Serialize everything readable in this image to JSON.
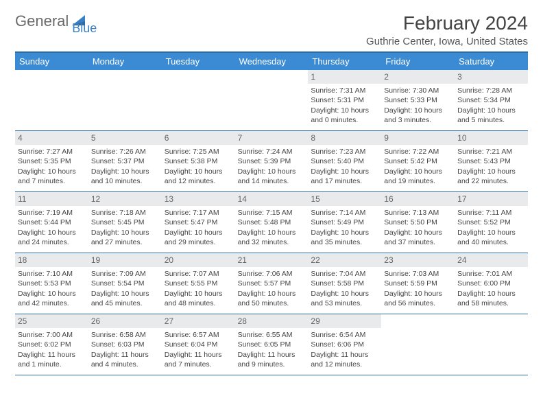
{
  "logo": {
    "text1": "General",
    "text2": "Blue"
  },
  "title": "February 2024",
  "location": "Guthrie Center, Iowa, United States",
  "colors": {
    "header_bg": "#3b8bd4",
    "border": "#2d6ca2",
    "daynum_bg": "#e9eaec",
    "text": "#444444",
    "logo_gray": "#6a6a6a",
    "logo_blue": "#3b7fc4"
  },
  "day_names": [
    "Sunday",
    "Monday",
    "Tuesday",
    "Wednesday",
    "Thursday",
    "Friday",
    "Saturday"
  ],
  "weeks": [
    [
      {
        "empty": true
      },
      {
        "empty": true
      },
      {
        "empty": true
      },
      {
        "empty": true
      },
      {
        "num": "1",
        "sunrise": "Sunrise: 7:31 AM",
        "sunset": "Sunset: 5:31 PM",
        "daylight": "Daylight: 10 hours and 0 minutes."
      },
      {
        "num": "2",
        "sunrise": "Sunrise: 7:30 AM",
        "sunset": "Sunset: 5:33 PM",
        "daylight": "Daylight: 10 hours and 3 minutes."
      },
      {
        "num": "3",
        "sunrise": "Sunrise: 7:28 AM",
        "sunset": "Sunset: 5:34 PM",
        "daylight": "Daylight: 10 hours and 5 minutes."
      }
    ],
    [
      {
        "num": "4",
        "sunrise": "Sunrise: 7:27 AM",
        "sunset": "Sunset: 5:35 PM",
        "daylight": "Daylight: 10 hours and 7 minutes."
      },
      {
        "num": "5",
        "sunrise": "Sunrise: 7:26 AM",
        "sunset": "Sunset: 5:37 PM",
        "daylight": "Daylight: 10 hours and 10 minutes."
      },
      {
        "num": "6",
        "sunrise": "Sunrise: 7:25 AM",
        "sunset": "Sunset: 5:38 PM",
        "daylight": "Daylight: 10 hours and 12 minutes."
      },
      {
        "num": "7",
        "sunrise": "Sunrise: 7:24 AM",
        "sunset": "Sunset: 5:39 PM",
        "daylight": "Daylight: 10 hours and 14 minutes."
      },
      {
        "num": "8",
        "sunrise": "Sunrise: 7:23 AM",
        "sunset": "Sunset: 5:40 PM",
        "daylight": "Daylight: 10 hours and 17 minutes."
      },
      {
        "num": "9",
        "sunrise": "Sunrise: 7:22 AM",
        "sunset": "Sunset: 5:42 PM",
        "daylight": "Daylight: 10 hours and 19 minutes."
      },
      {
        "num": "10",
        "sunrise": "Sunrise: 7:21 AM",
        "sunset": "Sunset: 5:43 PM",
        "daylight": "Daylight: 10 hours and 22 minutes."
      }
    ],
    [
      {
        "num": "11",
        "sunrise": "Sunrise: 7:19 AM",
        "sunset": "Sunset: 5:44 PM",
        "daylight": "Daylight: 10 hours and 24 minutes."
      },
      {
        "num": "12",
        "sunrise": "Sunrise: 7:18 AM",
        "sunset": "Sunset: 5:45 PM",
        "daylight": "Daylight: 10 hours and 27 minutes."
      },
      {
        "num": "13",
        "sunrise": "Sunrise: 7:17 AM",
        "sunset": "Sunset: 5:47 PM",
        "daylight": "Daylight: 10 hours and 29 minutes."
      },
      {
        "num": "14",
        "sunrise": "Sunrise: 7:15 AM",
        "sunset": "Sunset: 5:48 PM",
        "daylight": "Daylight: 10 hours and 32 minutes."
      },
      {
        "num": "15",
        "sunrise": "Sunrise: 7:14 AM",
        "sunset": "Sunset: 5:49 PM",
        "daylight": "Daylight: 10 hours and 35 minutes."
      },
      {
        "num": "16",
        "sunrise": "Sunrise: 7:13 AM",
        "sunset": "Sunset: 5:50 PM",
        "daylight": "Daylight: 10 hours and 37 minutes."
      },
      {
        "num": "17",
        "sunrise": "Sunrise: 7:11 AM",
        "sunset": "Sunset: 5:52 PM",
        "daylight": "Daylight: 10 hours and 40 minutes."
      }
    ],
    [
      {
        "num": "18",
        "sunrise": "Sunrise: 7:10 AM",
        "sunset": "Sunset: 5:53 PM",
        "daylight": "Daylight: 10 hours and 42 minutes."
      },
      {
        "num": "19",
        "sunrise": "Sunrise: 7:09 AM",
        "sunset": "Sunset: 5:54 PM",
        "daylight": "Daylight: 10 hours and 45 minutes."
      },
      {
        "num": "20",
        "sunrise": "Sunrise: 7:07 AM",
        "sunset": "Sunset: 5:55 PM",
        "daylight": "Daylight: 10 hours and 48 minutes."
      },
      {
        "num": "21",
        "sunrise": "Sunrise: 7:06 AM",
        "sunset": "Sunset: 5:57 PM",
        "daylight": "Daylight: 10 hours and 50 minutes."
      },
      {
        "num": "22",
        "sunrise": "Sunrise: 7:04 AM",
        "sunset": "Sunset: 5:58 PM",
        "daylight": "Daylight: 10 hours and 53 minutes."
      },
      {
        "num": "23",
        "sunrise": "Sunrise: 7:03 AM",
        "sunset": "Sunset: 5:59 PM",
        "daylight": "Daylight: 10 hours and 56 minutes."
      },
      {
        "num": "24",
        "sunrise": "Sunrise: 7:01 AM",
        "sunset": "Sunset: 6:00 PM",
        "daylight": "Daylight: 10 hours and 58 minutes."
      }
    ],
    [
      {
        "num": "25",
        "sunrise": "Sunrise: 7:00 AM",
        "sunset": "Sunset: 6:02 PM",
        "daylight": "Daylight: 11 hours and 1 minute."
      },
      {
        "num": "26",
        "sunrise": "Sunrise: 6:58 AM",
        "sunset": "Sunset: 6:03 PM",
        "daylight": "Daylight: 11 hours and 4 minutes."
      },
      {
        "num": "27",
        "sunrise": "Sunrise: 6:57 AM",
        "sunset": "Sunset: 6:04 PM",
        "daylight": "Daylight: 11 hours and 7 minutes."
      },
      {
        "num": "28",
        "sunrise": "Sunrise: 6:55 AM",
        "sunset": "Sunset: 6:05 PM",
        "daylight": "Daylight: 11 hours and 9 minutes."
      },
      {
        "num": "29",
        "sunrise": "Sunrise: 6:54 AM",
        "sunset": "Sunset: 6:06 PM",
        "daylight": "Daylight: 11 hours and 12 minutes."
      },
      {
        "empty": true
      },
      {
        "empty": true
      }
    ]
  ]
}
